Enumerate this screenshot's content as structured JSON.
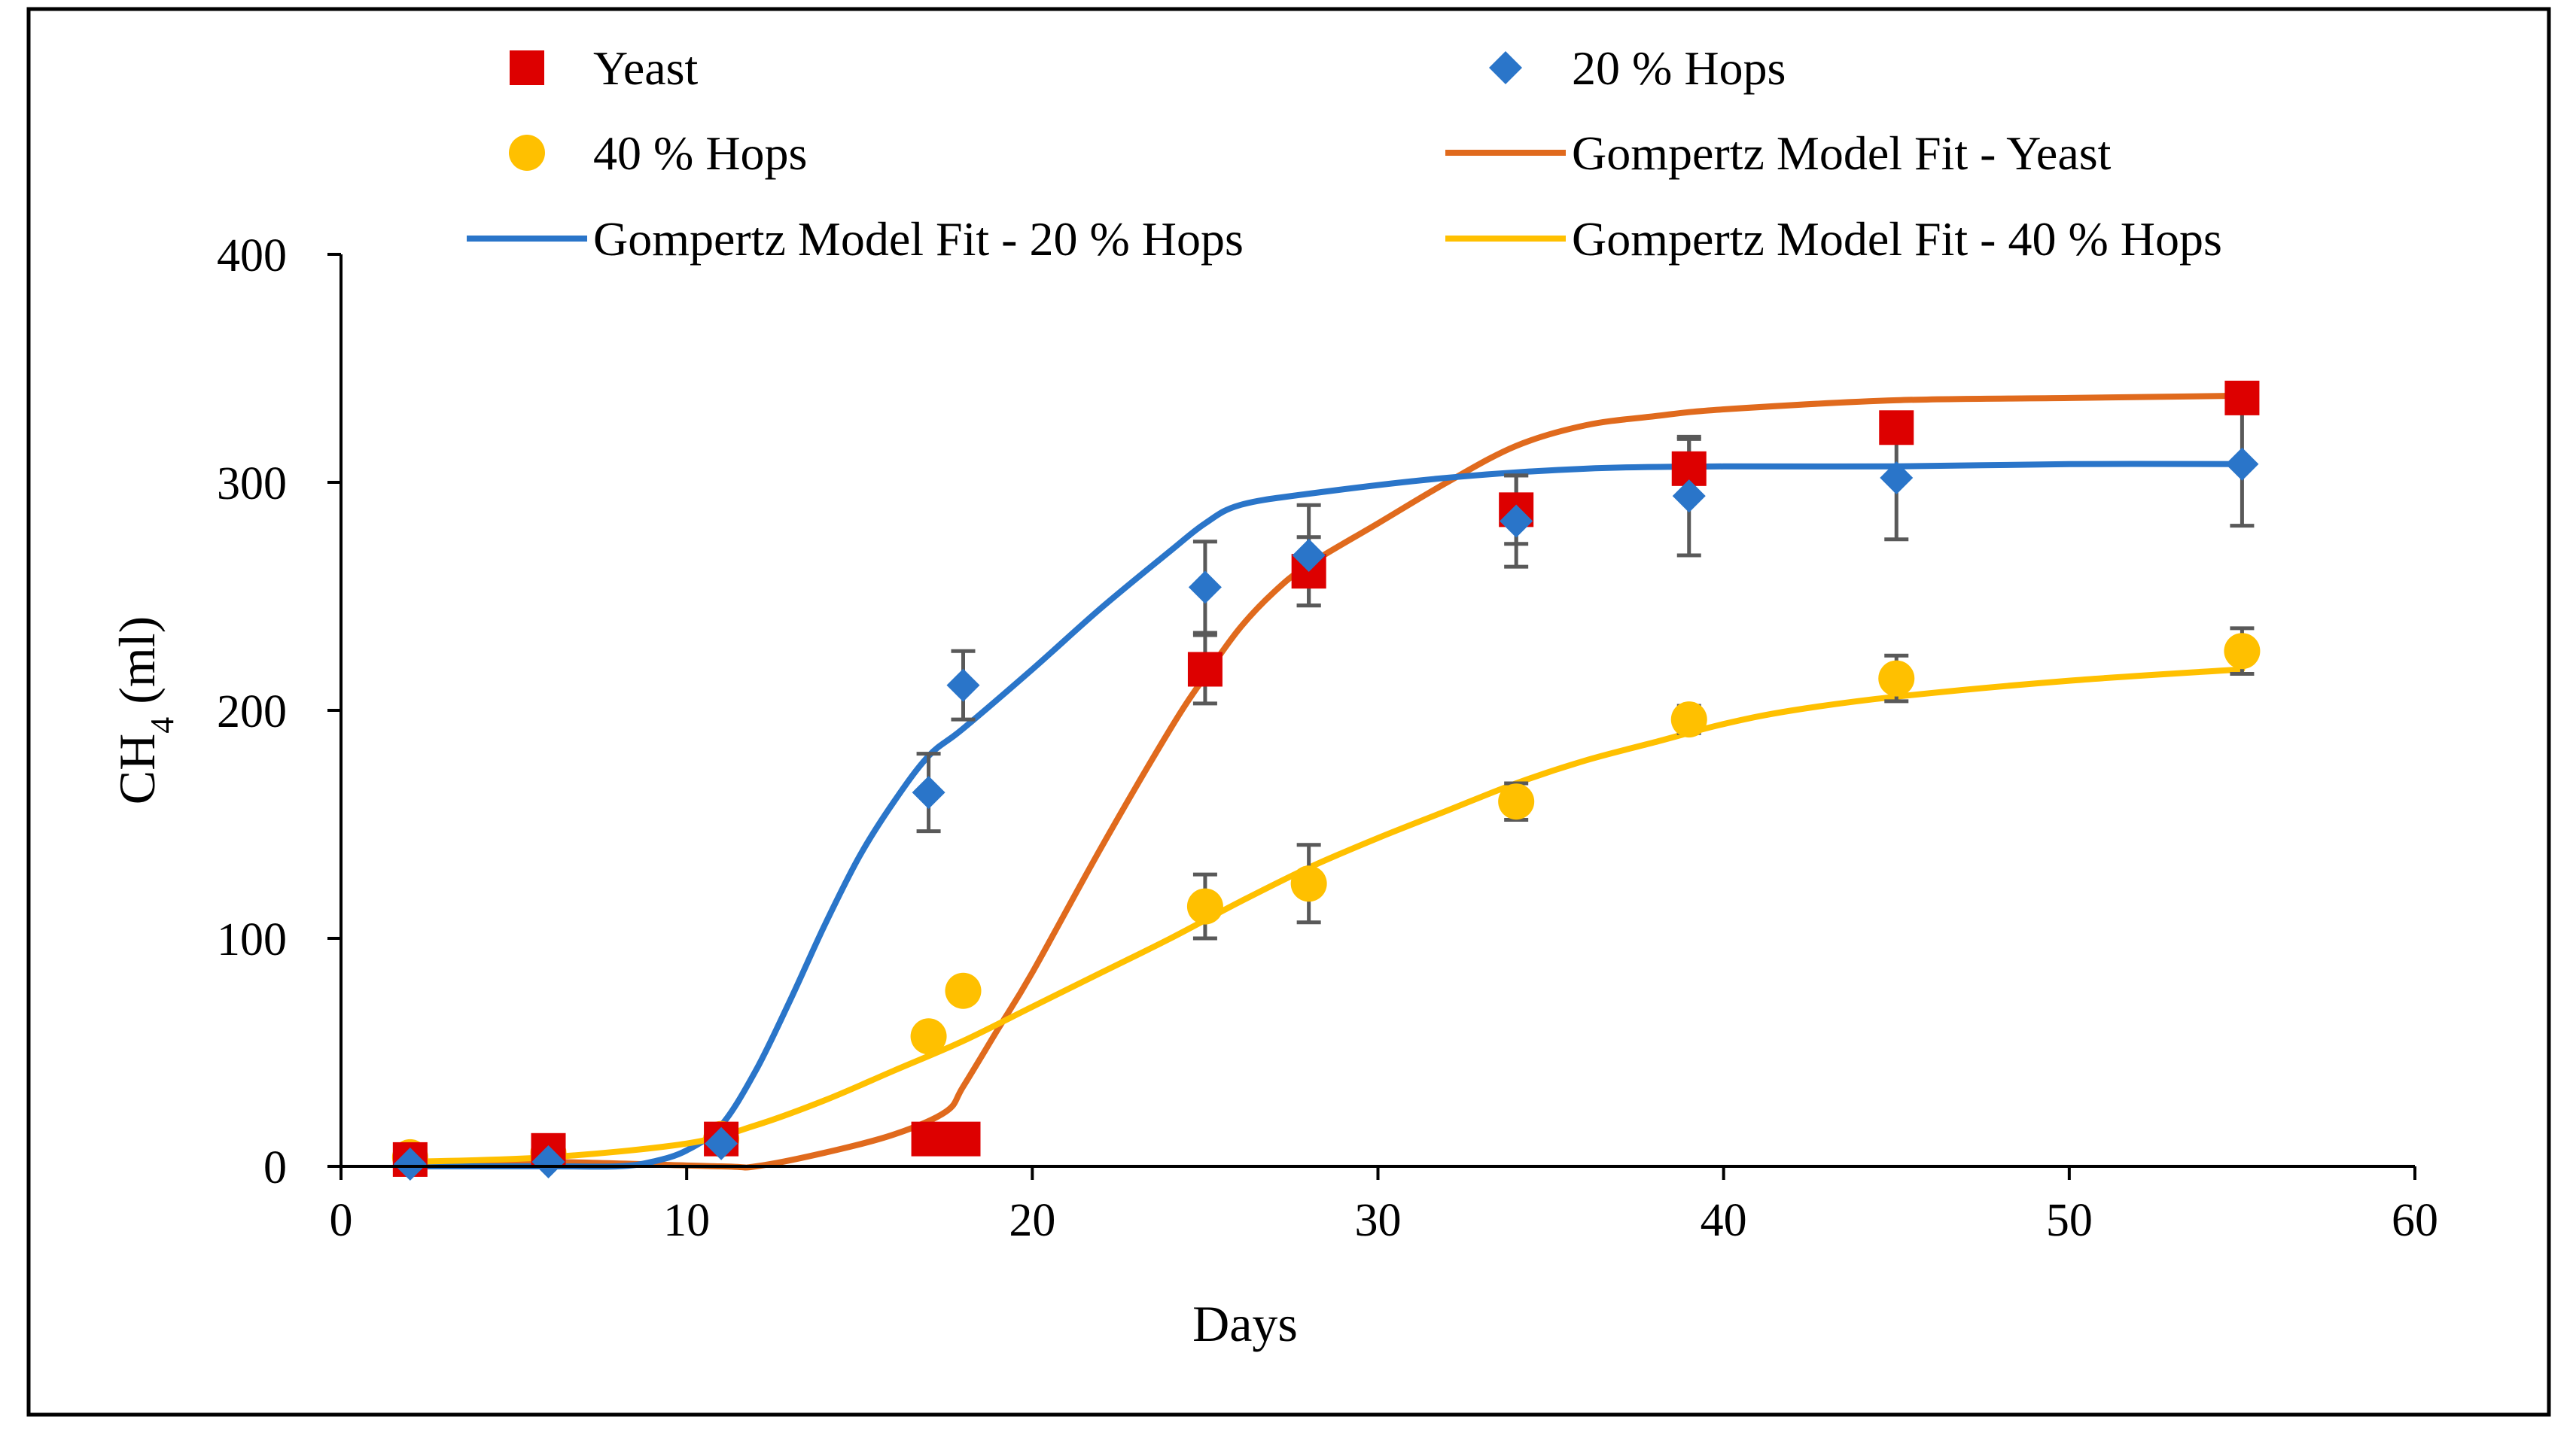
{
  "chart_data": {
    "type": "scatter",
    "title": "",
    "xlabel": "Days",
    "ylabel": "CH4 (ml)",
    "ylabel_main": "CH",
    "ylabel_sub": "4",
    "ylabel_unit": " (ml)",
    "xlim": [
      0,
      60
    ],
    "ylim": [
      0,
      400
    ],
    "xticks": [
      0,
      10,
      20,
      30,
      40,
      50,
      60
    ],
    "yticks": [
      0,
      100,
      200,
      300,
      400
    ],
    "grid": false,
    "legend_position": "top",
    "series": [
      {
        "name": "Yeast",
        "kind": "scatter",
        "marker": "square",
        "color": "#dd0000",
        "x": [
          2,
          6,
          11,
          17,
          18,
          25,
          28,
          34,
          39,
          45,
          55
        ],
        "y": [
          3,
          7,
          12,
          12,
          12,
          218,
          261,
          288,
          306,
          324,
          337
        ],
        "err": [
          0,
          0,
          0,
          0,
          0,
          15,
          15,
          15,
          13,
          0,
          0
        ]
      },
      {
        "name": "20 % Hops",
        "kind": "scatter",
        "marker": "diamond",
        "color": "#2a75c9",
        "x": [
          2,
          6,
          11,
          17,
          18,
          25,
          28,
          34,
          39,
          45,
          55
        ],
        "y": [
          1,
          2,
          10,
          164,
          211,
          254,
          268,
          283,
          294,
          302,
          308
        ],
        "err": [
          0,
          0,
          0,
          17,
          15,
          20,
          22,
          20,
          26,
          27,
          27
        ]
      },
      {
        "name": "40 % Hops",
        "kind": "scatter",
        "marker": "circle",
        "color": "#ffc000",
        "x": [
          2,
          6,
          11,
          17,
          18,
          25,
          28,
          34,
          39,
          45,
          55
        ],
        "y": [
          4,
          6,
          12,
          57,
          77,
          114,
          124,
          160,
          196,
          214,
          226
        ],
        "err": [
          0,
          0,
          0,
          0,
          5,
          14,
          17,
          8,
          6,
          10,
          10
        ]
      },
      {
        "name": "Gompertz Model Fit - Yeast",
        "kind": "line",
        "color": "#e06a1d",
        "x": [
          2,
          6,
          11,
          12,
          14,
          16,
          17.5,
          18,
          19,
          20,
          22,
          24,
          25,
          26,
          27,
          28,
          30,
          32,
          34,
          36,
          38,
          40,
          45,
          50,
          55
        ],
        "y": [
          2,
          2,
          0,
          0,
          6,
          14,
          24,
          35,
          60,
          85,
          140,
          192,
          215,
          236,
          252,
          264,
          282,
          300,
          316,
          325,
          329,
          332,
          336,
          337,
          338
        ]
      },
      {
        "name": "Gompertz Model Fit - 20 % Hops",
        "kind": "line",
        "color": "#2a75c9",
        "x": [
          2,
          6,
          8,
          9,
          10,
          11,
          12,
          13,
          14,
          15,
          16,
          17,
          18,
          20,
          22,
          24,
          25,
          26,
          28,
          32,
          36,
          40,
          45,
          50,
          55
        ],
        "y": [
          0,
          0,
          0,
          2,
          7,
          18,
          42,
          73,
          106,
          136,
          160,
          180,
          192,
          218,
          245,
          270,
          282,
          290,
          295,
          302,
          306,
          307,
          307,
          308,
          308
        ]
      },
      {
        "name": "Gompertz Model Fit - 40 % Hops",
        "kind": "line",
        "color": "#ffc000",
        "x": [
          2,
          6,
          10,
          12,
          14,
          16,
          18,
          20,
          22,
          24,
          26,
          28,
          30,
          32,
          34,
          36,
          38,
          40,
          42,
          45,
          50,
          55
        ],
        "y": [
          2,
          4,
          10,
          18,
          29,
          42,
          55,
          70,
          85,
          100,
          116,
          131,
          144,
          156,
          168,
          178,
          186,
          194,
          200,
          206,
          213,
          218
        ]
      }
    ],
    "legend": [
      {
        "label": "Yeast",
        "series": 0
      },
      {
        "label": "20 % Hops",
        "series": 1
      },
      {
        "label": "40 % Hops",
        "series": 2
      },
      {
        "label": "Gompertz Model Fit - Yeast",
        "series": 3
      },
      {
        "label": "Gompertz Model Fit - 20 % Hops",
        "series": 4
      },
      {
        "label": "Gompertz Model Fit - 40 % Hops",
        "series": 5
      }
    ]
  }
}
